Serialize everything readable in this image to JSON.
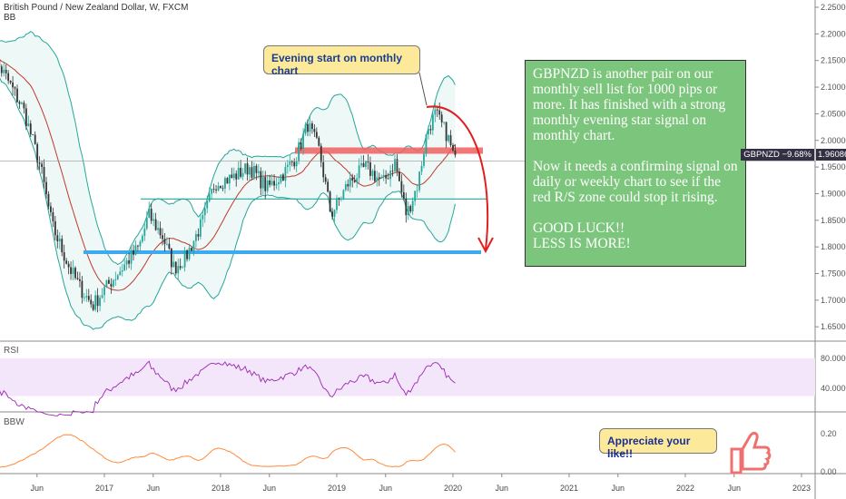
{
  "header": {
    "title": "British Pound / New Zealand Dollar, W, FXCM",
    "indicator": "BB"
  },
  "price_tag": {
    "symbol_change": "GBPNZD −9.68%",
    "price": "1.96086"
  },
  "annotations": {
    "callout": "Evening start on monthly chart",
    "note_p1": "GBPNZD is another pair on our monthly sell list for 1000 pips or more. It has finished with a strong monthly evening star signal on monthly chart.",
    "note_p2": "Now it needs a confirming signal on daily or weekly chart to see if the red R/S zone could stop it rising.",
    "note_p3": "GOOD LUCK!!",
    "note_p4": "LESS IS MORE!",
    "like": "Appreciate your like!!"
  },
  "panes": {
    "rsi": "RSI",
    "bbw": "BBW"
  },
  "colors": {
    "up": "#26a69a",
    "down": "#333333",
    "bb": "#26a69a",
    "basis": "#c0392b",
    "rsi": "#9c27b0",
    "bbw": "#ff8a3d",
    "zone": "#f06060",
    "support": "#3daaf0",
    "teal_line": "#26a69a"
  },
  "chart_data": {
    "type": "candlestick",
    "title": "British Pound / New Zealand Dollar, W, FXCM",
    "x_ticks": [
      "Jun",
      "2017",
      "Jun",
      "2018",
      "Jun",
      "2019",
      "Jun",
      "2020",
      "Jun",
      "2021",
      "Jun",
      "2022",
      "Jun",
      "2023"
    ],
    "x_tick_years": [
      2016.42,
      2017,
      2017.42,
      2018,
      2018.42,
      2019,
      2019.42,
      2020,
      2020.42,
      2021,
      2021.42,
      2022,
      2022.42,
      2023
    ],
    "y_ticks": [
      "2.25000",
      "2.20000",
      "2.15000",
      "2.10000",
      "2.05000",
      "2.00000",
      "1.95000",
      "1.90000",
      "1.85000",
      "1.80000",
      "1.75000",
      "1.70000",
      "1.65000"
    ],
    "ylim": [
      1.64,
      2.26
    ],
    "monthly_close": [
      [
        2016.0,
        2.17
      ],
      [
        2016.15,
        2.12
      ],
      [
        2016.3,
        2.06
      ],
      [
        2016.45,
        1.95
      ],
      [
        2016.55,
        1.84
      ],
      [
        2016.7,
        1.76
      ],
      [
        2016.8,
        1.72
      ],
      [
        2016.9,
        1.69
      ],
      [
        2017.0,
        1.72
      ],
      [
        2017.15,
        1.76
      ],
      [
        2017.3,
        1.8
      ],
      [
        2017.38,
        1.86
      ],
      [
        2017.5,
        1.82
      ],
      [
        2017.6,
        1.76
      ],
      [
        2017.7,
        1.78
      ],
      [
        2017.85,
        1.85
      ],
      [
        2017.95,
        1.92
      ],
      [
        2018.1,
        1.93
      ],
      [
        2018.25,
        1.95
      ],
      [
        2018.4,
        1.91
      ],
      [
        2018.55,
        1.94
      ],
      [
        2018.65,
        1.97
      ],
      [
        2018.75,
        2.03
      ],
      [
        2018.85,
        1.98
      ],
      [
        2018.95,
        1.86
      ],
      [
        2019.1,
        1.92
      ],
      [
        2019.25,
        1.95
      ],
      [
        2019.4,
        1.92
      ],
      [
        2019.5,
        1.96
      ],
      [
        2019.6,
        1.86
      ],
      [
        2019.7,
        1.92
      ],
      [
        2019.78,
        2.02
      ],
      [
        2019.85,
        2.05
      ],
      [
        2019.95,
        2.01
      ],
      [
        2020.02,
        1.96
      ]
    ],
    "levels": {
      "resistance_zone": 1.98,
      "teal_line": 1.89,
      "support_line": 1.79
    },
    "rsi": {
      "y_ticks": [
        "80.0000",
        "40.0000"
      ],
      "band": [
        30,
        70
      ]
    },
    "bbw": {
      "y_ticks": [
        "0.20",
        "0.00"
      ]
    }
  }
}
